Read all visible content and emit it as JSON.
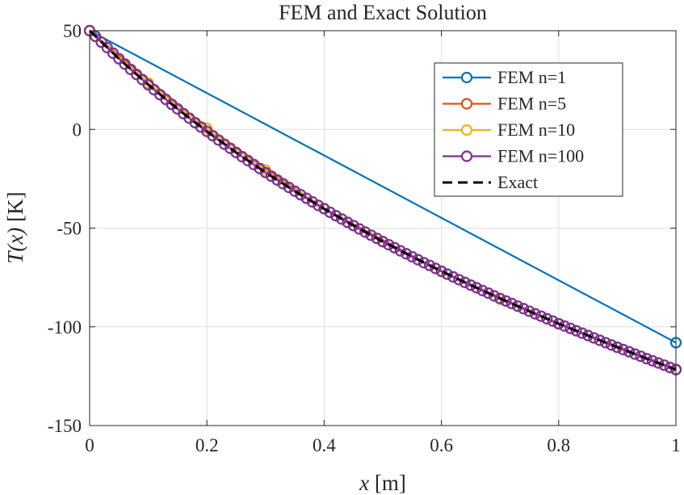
{
  "chart_data": {
    "type": "line",
    "title": "FEM and Exact Solution",
    "xlabel_var": "x",
    "xlabel_unit": " [m]",
    "ylabel_var": "T(x)",
    "ylabel_unit": " [K]",
    "xlim": [
      0,
      1
    ],
    "ylim": [
      -150,
      50
    ],
    "xticks": [
      0,
      0.2,
      0.4,
      0.6,
      0.8,
      1
    ],
    "xtick_labels": [
      "0",
      "0.2",
      "0.4",
      "0.6",
      "0.8",
      "1"
    ],
    "yticks": [
      -150,
      -100,
      -50,
      0,
      50
    ],
    "ytick_labels": [
      "-150",
      "-100",
      "-50",
      "0",
      "50"
    ],
    "grid": true,
    "legend_position": "top-right",
    "series": [
      {
        "name": "FEM n=1",
        "color": "#0072BD",
        "marker": "circle",
        "line": "solid",
        "x": [
          0,
          1
        ],
        "y": [
          50,
          -108
        ]
      },
      {
        "name": "FEM n=5",
        "color": "#D95319",
        "marker": "circle",
        "line": "solid",
        "x": [
          0,
          0.2,
          0.4,
          0.6,
          0.8,
          1
        ],
        "y": [
          50,
          0.5,
          -40,
          -72,
          -98.5,
          -121.5
        ]
      },
      {
        "name": "FEM n=10",
        "color": "#EDB120",
        "marker": "circle",
        "line": "solid",
        "x": [
          0,
          0.1,
          0.2,
          0.3,
          0.4,
          0.5,
          0.6,
          0.7,
          0.8,
          0.9,
          1
        ],
        "y": [
          50,
          23.5,
          0.5,
          -20.5,
          -40,
          -57,
          -72,
          -86,
          -98.5,
          -110.5,
          -121.5
        ]
      },
      {
        "name": "FEM n=100",
        "color": "#7E2F8E",
        "marker": "circle",
        "line": "solid",
        "x": [
          0,
          0.01,
          0.02,
          0.03,
          0.04,
          0.05,
          0.06,
          0.07,
          0.08,
          0.09,
          0.1,
          0.11,
          0.12,
          0.13,
          0.14,
          0.15,
          0.16,
          0.17,
          0.18,
          0.19,
          0.2,
          0.21,
          0.22,
          0.23,
          0.24,
          0.25,
          0.26,
          0.27,
          0.28,
          0.29,
          0.3,
          0.31,
          0.32,
          0.33,
          0.34,
          0.35,
          0.36,
          0.37,
          0.38,
          0.39,
          0.4,
          0.41,
          0.42,
          0.43,
          0.44,
          0.45,
          0.46,
          0.47,
          0.48,
          0.49,
          0.5,
          0.51,
          0.52,
          0.53,
          0.54,
          0.55,
          0.56,
          0.57,
          0.58,
          0.59,
          0.6,
          0.61,
          0.62,
          0.63,
          0.64,
          0.65,
          0.66,
          0.67,
          0.68,
          0.69,
          0.7,
          0.71,
          0.72,
          0.73,
          0.74,
          0.75,
          0.76,
          0.77,
          0.78,
          0.79,
          0.8,
          0.81,
          0.82,
          0.83,
          0.84,
          0.85,
          0.86,
          0.87,
          0.88,
          0.89,
          0.9,
          0.91,
          0.92,
          0.93,
          0.94,
          0.95,
          0.96,
          0.97,
          0.98,
          0.99,
          1
        ],
        "y": [
          50,
          47.1,
          44.2,
          41.4,
          38.6,
          35.8,
          33.1,
          30.4,
          27.8,
          25.2,
          22.6,
          20.1,
          17.6,
          15.2,
          12.7,
          10.4,
          8,
          5.7,
          3.4,
          1.2,
          -1,
          -3.2,
          -5.4,
          -7.5,
          -9.6,
          -11.7,
          -13.8,
          -15.8,
          -17.8,
          -19.8,
          -21.8,
          -23.7,
          -25.6,
          -27.5,
          -29.4,
          -31.3,
          -33.1,
          -34.9,
          -36.7,
          -38.5,
          -40.2,
          -42,
          -43.7,
          -45.4,
          -47.1,
          -48.7,
          -50.4,
          -52,
          -53.6,
          -55.2,
          -56.8,
          -58.4,
          -59.9,
          -61.5,
          -63,
          -64.5,
          -66,
          -67.5,
          -68.9,
          -70.4,
          -71.8,
          -73.3,
          -74.7,
          -76.1,
          -77.5,
          -78.9,
          -80.2,
          -81.6,
          -82.9,
          -84.3,
          -85.6,
          -86.9,
          -88.2,
          -89.5,
          -90.8,
          -92.1,
          -93.4,
          -94.6,
          -95.9,
          -97.1,
          -98.4,
          -99.6,
          -100.8,
          -102,
          -103.2,
          -104.4,
          -105.6,
          -106.8,
          -108,
          -109.2,
          -110.3,
          -111.5,
          -112.6,
          -113.8,
          -114.9,
          -116.1,
          -117.2,
          -118.3,
          -119.4,
          -120.6,
          -121.7
        ]
      },
      {
        "name": "Exact",
        "color": "#000000",
        "marker": "none",
        "line": "dashed",
        "x": [
          0,
          0.05,
          0.1,
          0.15,
          0.2,
          0.25,
          0.3,
          0.35,
          0.4,
          0.45,
          0.5,
          0.55,
          0.6,
          0.65,
          0.7,
          0.75,
          0.8,
          0.85,
          0.9,
          0.95,
          1
        ],
        "y": [
          50,
          35.8,
          22.6,
          10.4,
          -1,
          -11.7,
          -21.8,
          -31.3,
          -40.2,
          -48.7,
          -56.8,
          -64.5,
          -71.8,
          -78.9,
          -85.6,
          -92.1,
          -98.4,
          -104.4,
          -110.3,
          -116.1,
          -121.7
        ]
      }
    ]
  }
}
